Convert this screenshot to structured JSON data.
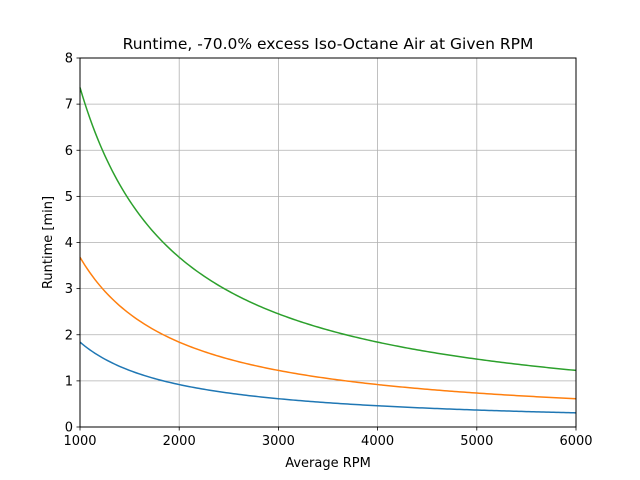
{
  "chart_data": {
    "type": "line",
    "title": "Runtime, -70.0% excess Iso-Octane Air at Given RPM",
    "xlabel": "Average RPM",
    "ylabel": "Runtime [min]",
    "xlim": [
      1000,
      6000
    ],
    "ylim": [
      0,
      8
    ],
    "xticks": [
      1000,
      2000,
      3000,
      4000,
      5000,
      6000
    ],
    "yticks": [
      0,
      1,
      2,
      3,
      4,
      5,
      6,
      7,
      8
    ],
    "grid": true,
    "series": [
      {
        "color": "#1f77b4",
        "k": 1840,
        "x": [
          1000,
          1500,
          2000,
          2500,
          3000,
          3500,
          4000,
          4500,
          5000,
          5500,
          6000
        ],
        "values": [
          1.84,
          1.23,
          0.92,
          0.74,
          0.61,
          0.53,
          0.46,
          0.41,
          0.37,
          0.33,
          0.31
        ]
      },
      {
        "color": "#ff7f0e",
        "k": 3680,
        "x": [
          1000,
          1500,
          2000,
          2500,
          3000,
          3500,
          4000,
          4500,
          5000,
          5500,
          6000
        ],
        "values": [
          3.68,
          2.45,
          1.84,
          1.47,
          1.23,
          1.05,
          0.92,
          0.82,
          0.74,
          0.67,
          0.61
        ]
      },
      {
        "color": "#2ca02c",
        "k": 7360,
        "x": [
          1000,
          1500,
          2000,
          2500,
          3000,
          3500,
          4000,
          4500,
          5000,
          5500,
          6000
        ],
        "values": [
          7.36,
          4.91,
          3.68,
          2.94,
          2.45,
          2.1,
          1.84,
          1.64,
          1.47,
          1.34,
          1.23
        ]
      }
    ]
  }
}
